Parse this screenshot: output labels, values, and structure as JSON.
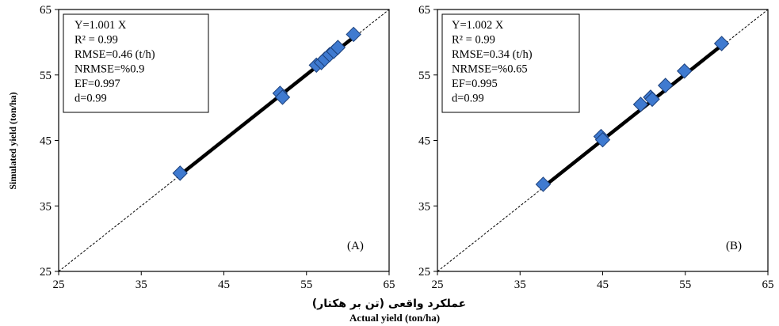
{
  "chart_data": [
    {
      "type": "scatter",
      "panel_label": "(A)",
      "xlim": [
        25,
        65
      ],
      "ylim": [
        25,
        65
      ],
      "xticks": [
        "25",
        "35",
        "45",
        "55",
        "65"
      ],
      "yticks": [
        "25",
        "35",
        "45",
        "55",
        "65"
      ],
      "stats": [
        "Y=1.001 X",
        "R² = 0.99",
        "RMSE=0.46 (t/h)",
        "NRMSE=%0.9",
        "EF=0.997",
        "d=0.99"
      ],
      "series": [
        {
          "points": [
            [
              39.7,
              40.0
            ],
            [
              51.8,
              52.2
            ],
            [
              52.1,
              51.6
            ],
            [
              56.2,
              56.5
            ],
            [
              56.8,
              56.9
            ],
            [
              57.2,
              57.4
            ],
            [
              57.8,
              58.1
            ],
            [
              58.3,
              58.6
            ],
            [
              58.8,
              59.2
            ],
            [
              60.7,
              61.2
            ]
          ]
        }
      ],
      "fit_slope": 1.001,
      "fit_x_range": [
        39.7,
        60.7
      ],
      "reference_line": "1:1"
    },
    {
      "type": "scatter",
      "panel_label": "(B)",
      "xlim": [
        25,
        65
      ],
      "ylim": [
        25,
        65
      ],
      "xticks": [
        "25",
        "35",
        "45",
        "55",
        "65"
      ],
      "yticks": [
        "25",
        "35",
        "45",
        "55",
        "65"
      ],
      "stats": [
        "Y=1.002 X",
        "R² = 0.99",
        "RMSE=0.34  (t/h)",
        "NRMSE=%0.65",
        "EF=0.995",
        "d=0.99"
      ],
      "series": [
        {
          "points": [
            [
              37.8,
              38.3
            ],
            [
              44.8,
              45.6
            ],
            [
              45.0,
              45.1
            ],
            [
              49.6,
              50.5
            ],
            [
              50.8,
              51.6
            ],
            [
              51.0,
              51.3
            ],
            [
              52.6,
              53.4
            ],
            [
              54.9,
              55.6
            ],
            [
              59.4,
              59.8
            ]
          ]
        }
      ],
      "fit_slope": 1.002,
      "fit_x_range": [
        37.8,
        59.4
      ],
      "reference_line": "1:1"
    }
  ],
  "ylabel": "Simulated yield (ton/ha)",
  "xlabel_fa": "عملکرد واقعی (تن بر هکتار)",
  "xlabel_en": "Actual yield (ton/ha)",
  "colors": {
    "marker_fill": "#3f7ad0",
    "marker_stroke": "#1b3f7a",
    "fit_line": "#000000",
    "ref_line": "#000000"
  }
}
